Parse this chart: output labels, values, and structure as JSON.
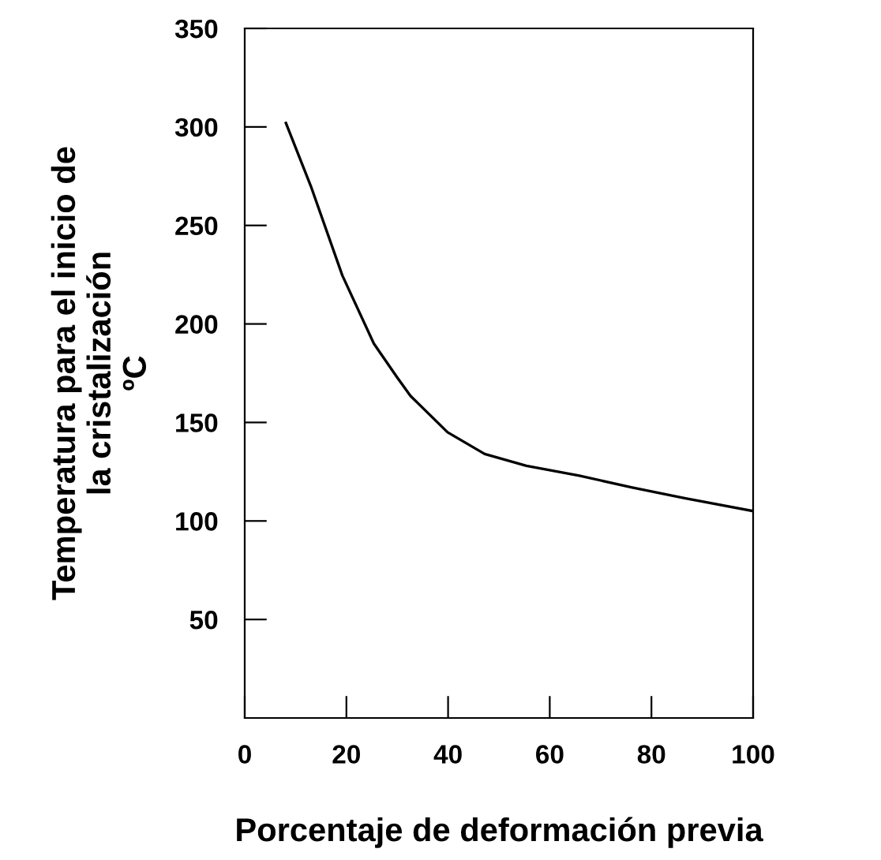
{
  "chart_data": {
    "type": "line",
    "xlabel": "Porcentaje de deformación previa",
    "ylabel": "Temperatura para el inicio de\nla cristalización\nºC",
    "series": [
      {
        "color": "#000000",
        "x": [
          8.1,
          13,
          19.2,
          25.4,
          30,
          32.6,
          39.9,
          47.2,
          55.4,
          65.8,
          76.2,
          86.5,
          100
        ],
        "values": [
          302,
          270,
          224.6,
          190,
          172.8,
          163.5,
          145,
          134,
          128,
          123,
          117,
          111.6,
          105
        ]
      }
    ],
    "xlim": [
      0,
      100
    ],
    "ylim": [
      0,
      350
    ],
    "xticks": [
      0,
      20,
      40,
      60,
      80,
      100
    ],
    "yticks": [
      50,
      100,
      150,
      200,
      250,
      300,
      350
    ],
    "grid": false,
    "marker": "none",
    "line_style": "solid"
  }
}
